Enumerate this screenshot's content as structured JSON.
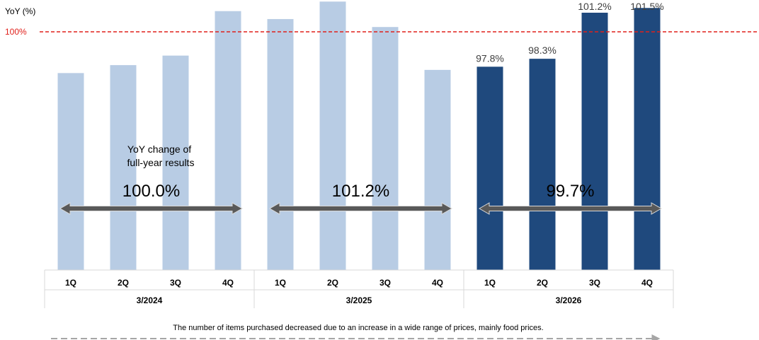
{
  "chart_data": {
    "type": "bar",
    "ylabel": "YoY (%)",
    "reference_line": {
      "value": 100,
      "label": "100%",
      "color": "#e0201b",
      "style": "dashed"
    },
    "categories": [
      "1Q",
      "2Q",
      "3Q",
      "4Q",
      "1Q",
      "2Q",
      "3Q",
      "4Q",
      "1Q",
      "2Q",
      "3Q",
      "4Q"
    ],
    "values": [
      97.4,
      97.9,
      98.5,
      101.3,
      100.8,
      101.9,
      100.3,
      97.6,
      97.8,
      98.3,
      101.2,
      101.5
    ],
    "value_labels": [
      "",
      "",
      "",
      "",
      "",
      "",
      "",
      "",
      "97.8%",
      "98.3%",
      "101.2%",
      "101.5%"
    ],
    "groups": [
      {
        "label": "3/2024",
        "start": 0,
        "count": 4,
        "color": "#b8cce4",
        "full_year": "100.0%"
      },
      {
        "label": "3/2025",
        "start": 4,
        "count": 4,
        "color": "#b8cce4",
        "full_year": "101.2%"
      },
      {
        "label": "3/2026",
        "start": 8,
        "count": 4,
        "color": "#1f497d",
        "full_year": "99.7%"
      }
    ],
    "ylim": [
      85,
      102
    ],
    "grid": false,
    "annotation": "YoY change of full-year results",
    "annotation_lines": [
      "YoY change of",
      "full-year results"
    ],
    "footnote": "The number of items purchased decreased due to an increase in a wide range of prices, mainly food prices."
  }
}
